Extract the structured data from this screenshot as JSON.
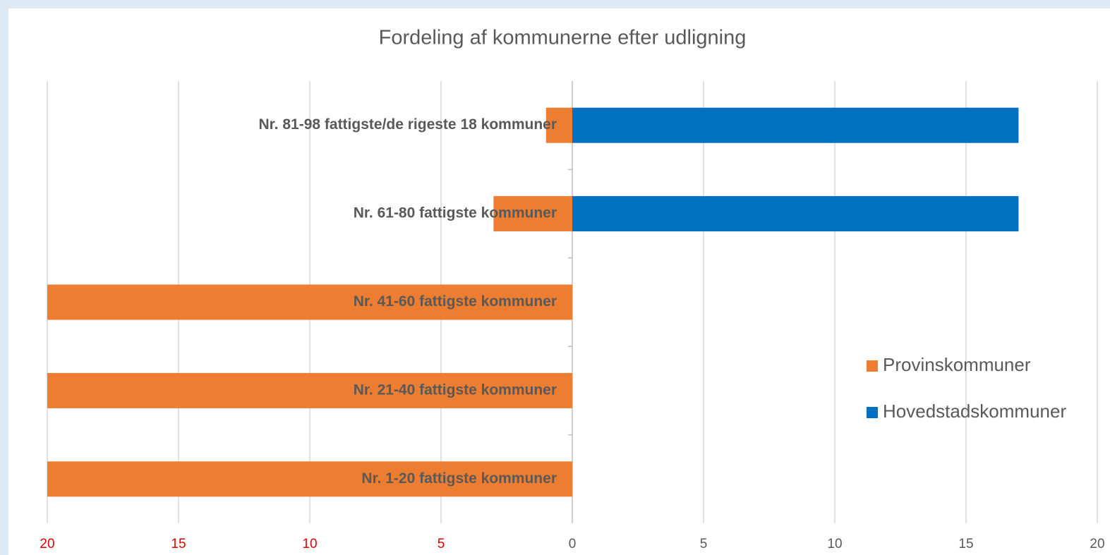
{
  "chart_data": {
    "type": "diverging_bar",
    "title": "Fordeling af kommunerne efter udligning",
    "categories": [
      "Nr. 81-98 fattigste/de rigeste 18 kommuner",
      "Nr. 61-80 fattigste kommuner",
      "Nr. 41-60 fattigste kommuner",
      "Nr. 21-40 fattigste kommuner",
      "Nr. 1-20 fattigste kommuner"
    ],
    "series": [
      {
        "name": "Provinskommuner",
        "color": "#ed7d31",
        "values": [
          -1,
          -3,
          -20,
          -20,
          -20
        ]
      },
      {
        "name": "Hovedstadskommuner",
        "color": "#0070c0",
        "values": [
          17,
          17,
          0,
          0,
          0
        ]
      }
    ],
    "xlim": [
      -20,
      20
    ],
    "xticks": [
      {
        "value": -20,
        "label": "20"
      },
      {
        "value": -15,
        "label": "15"
      },
      {
        "value": -10,
        "label": "10"
      },
      {
        "value": -5,
        "label": "5"
      },
      0,
      5,
      10,
      15,
      20
    ],
    "negative_tick_color": "#e00000",
    "tick_color": "#595959",
    "grid": true,
    "legend": "right"
  }
}
